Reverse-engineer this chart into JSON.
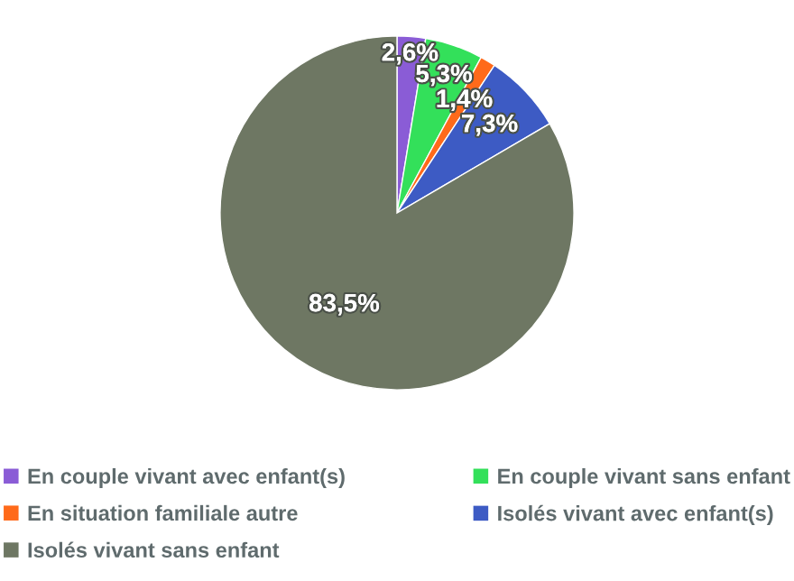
{
  "chart_data": {
    "type": "pie",
    "categories": [
      "En couple vivant avec enfant(s)",
      "En couple vivant sans enfant",
      "En situation familiale autre",
      "Isolés vivant avec enfant(s)",
      "Isolés vivant sans enfant"
    ],
    "values": [
      2.6,
      5.3,
      1.4,
      7.3,
      83.5
    ],
    "colors": [
      "#8a5cd6",
      "#33e05a",
      "#ff6a1a",
      "#3d5bc4",
      "#6e7763"
    ],
    "value_labels": [
      "2,6%",
      "5,3%",
      "1,4%",
      "7,3%",
      "83,5%"
    ],
    "legend": "bottom"
  }
}
